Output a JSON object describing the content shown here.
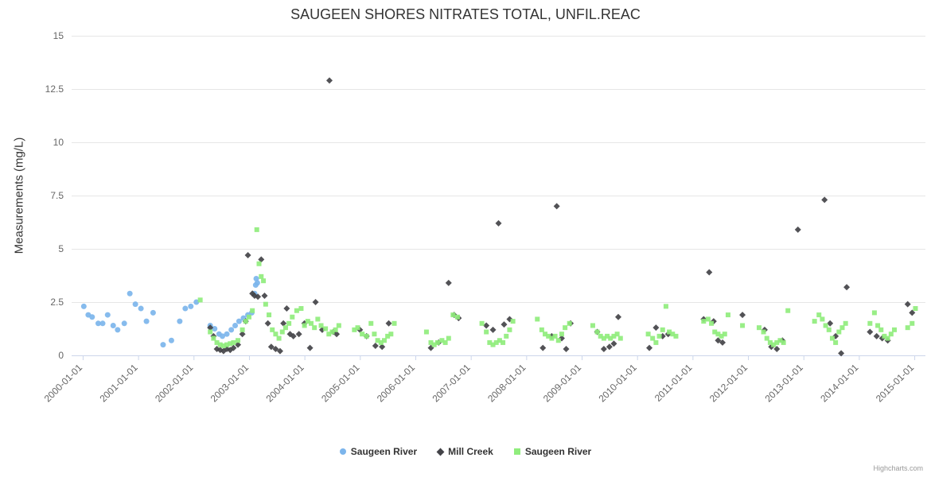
{
  "credits": "Highcharts.com",
  "chart_data": {
    "type": "scatter",
    "title": "SAUGEEN SHORES NITRATES TOTAL, UNFIL.REAC",
    "xlabel": "",
    "ylabel": "Measurements (mg/L)",
    "ylim": [
      0,
      15
    ],
    "xlim": [
      1999.8,
      2015.2
    ],
    "y_ticks": [
      0,
      2.5,
      5,
      7.5,
      10,
      12.5,
      15
    ],
    "x_tick_values": [
      2000,
      2001,
      2002,
      2003,
      2004,
      2005,
      2006,
      2007,
      2008,
      2009,
      2010,
      2011,
      2012,
      2013,
      2014,
      2015
    ],
    "x_tick_labels": [
      "2000-01-01",
      "2001-01-01",
      "2002-01-01",
      "2003-01-01",
      "2004-01-01",
      "2005-01-01",
      "2006-01-01",
      "2007-01-01",
      "2008-01-01",
      "2009-01-01",
      "2010-01-01",
      "2011-01-01",
      "2012-01-01",
      "2013-01-01",
      "2014-01-01",
      "2015-01-01"
    ],
    "grid": true,
    "legend_position": "bottom",
    "grid_color": "#e6e6e6",
    "axis_line_color": "#ccd6eb",
    "tick_label_color": "#666666",
    "series": [
      {
        "name": "Saugeen River",
        "marker": "circle",
        "color": "#7cb5ec",
        "points": [
          [
            2000.02,
            2.3
          ],
          [
            2000.1,
            1.9
          ],
          [
            2000.17,
            1.8
          ],
          [
            2000.28,
            1.5
          ],
          [
            2000.36,
            1.5
          ],
          [
            2000.45,
            1.9
          ],
          [
            2000.55,
            1.4
          ],
          [
            2000.63,
            1.2
          ],
          [
            2000.75,
            1.5
          ],
          [
            2000.85,
            2.9
          ],
          [
            2000.95,
            2.4
          ],
          [
            2001.05,
            2.2
          ],
          [
            2001.15,
            1.6
          ],
          [
            2001.27,
            2.0
          ],
          [
            2001.45,
            0.5
          ],
          [
            2001.6,
            0.7
          ],
          [
            2001.75,
            1.6
          ],
          [
            2001.85,
            2.2
          ],
          [
            2001.95,
            2.3
          ],
          [
            2002.05,
            2.5
          ],
          [
            2002.3,
            1.4
          ],
          [
            2002.38,
            1.25
          ],
          [
            2002.46,
            1.0
          ],
          [
            2002.52,
            0.9
          ],
          [
            2002.6,
            1.0
          ],
          [
            2002.68,
            1.2
          ],
          [
            2002.75,
            1.4
          ],
          [
            2002.82,
            1.6
          ],
          [
            2002.9,
            1.75
          ],
          [
            2002.98,
            1.9
          ],
          [
            2003.05,
            2.0
          ],
          [
            2003.1,
            2.9
          ],
          [
            2003.12,
            3.3
          ],
          [
            2003.13,
            3.6
          ],
          [
            2003.15,
            3.4
          ]
        ]
      },
      {
        "name": "Mill Creek",
        "marker": "diamond",
        "color": "#434348",
        "points": [
          [
            2002.3,
            1.3
          ],
          [
            2002.36,
            0.9
          ],
          [
            2002.42,
            0.3
          ],
          [
            2002.48,
            0.25
          ],
          [
            2002.54,
            0.2
          ],
          [
            2002.6,
            0.3
          ],
          [
            2002.66,
            0.25
          ],
          [
            2002.72,
            0.35
          ],
          [
            2002.8,
            0.5
          ],
          [
            2002.88,
            1.0
          ],
          [
            2002.94,
            1.6
          ],
          [
            2002.98,
            4.7
          ],
          [
            2003.06,
            2.9
          ],
          [
            2003.1,
            2.8
          ],
          [
            2003.16,
            2.75
          ],
          [
            2003.22,
            4.5
          ],
          [
            2003.28,
            2.8
          ],
          [
            2003.34,
            1.5
          ],
          [
            2003.4,
            0.4
          ],
          [
            2003.48,
            0.3
          ],
          [
            2003.56,
            0.2
          ],
          [
            2003.62,
            1.5
          ],
          [
            2003.68,
            2.2
          ],
          [
            2003.74,
            1.0
          ],
          [
            2003.8,
            0.9
          ],
          [
            2003.9,
            1.0
          ],
          [
            2004.0,
            1.5
          ],
          [
            2004.1,
            0.35
          ],
          [
            2004.2,
            2.5
          ],
          [
            2004.32,
            1.2
          ],
          [
            2004.45,
            12.9
          ],
          [
            2004.52,
            1.1
          ],
          [
            2004.58,
            1.0
          ],
          [
            2005.0,
            1.2
          ],
          [
            2005.12,
            0.9
          ],
          [
            2005.28,
            0.45
          ],
          [
            2005.4,
            0.4
          ],
          [
            2005.52,
            1.5
          ],
          [
            2006.28,
            0.35
          ],
          [
            2006.42,
            0.6
          ],
          [
            2006.6,
            3.4
          ],
          [
            2006.7,
            1.9
          ],
          [
            2006.78,
            1.75
          ],
          [
            2007.28,
            1.4
          ],
          [
            2007.4,
            1.2
          ],
          [
            2007.5,
            6.2
          ],
          [
            2007.6,
            1.45
          ],
          [
            2007.7,
            1.7
          ],
          [
            2008.3,
            0.35
          ],
          [
            2008.46,
            0.9
          ],
          [
            2008.55,
            7.0
          ],
          [
            2008.64,
            0.8
          ],
          [
            2008.72,
            0.3
          ],
          [
            2008.8,
            1.5
          ],
          [
            2009.28,
            1.1
          ],
          [
            2009.4,
            0.3
          ],
          [
            2009.5,
            0.4
          ],
          [
            2009.58,
            0.55
          ],
          [
            2009.66,
            1.8
          ],
          [
            2010.22,
            0.35
          ],
          [
            2010.34,
            1.3
          ],
          [
            2010.46,
            0.9
          ],
          [
            2010.56,
            1.0
          ],
          [
            2011.2,
            1.7
          ],
          [
            2011.3,
            3.9
          ],
          [
            2011.38,
            1.6
          ],
          [
            2011.46,
            0.7
          ],
          [
            2011.54,
            0.6
          ],
          [
            2011.9,
            1.9
          ],
          [
            2012.3,
            1.2
          ],
          [
            2012.42,
            0.4
          ],
          [
            2012.52,
            0.3
          ],
          [
            2012.62,
            0.7
          ],
          [
            2012.9,
            5.9
          ],
          [
            2013.38,
            7.3
          ],
          [
            2013.48,
            1.5
          ],
          [
            2013.58,
            0.9
          ],
          [
            2013.68,
            0.1
          ],
          [
            2013.78,
            3.2
          ],
          [
            2014.2,
            1.1
          ],
          [
            2014.32,
            0.9
          ],
          [
            2014.42,
            0.8
          ],
          [
            2014.52,
            0.7
          ],
          [
            2014.88,
            2.4
          ],
          [
            2014.96,
            2.0
          ]
        ]
      },
      {
        "name": "Saugeen River",
        "marker": "square",
        "color": "#90ed7d",
        "points": [
          [
            2002.12,
            2.6
          ],
          [
            2002.3,
            1.1
          ],
          [
            2002.36,
            0.8
          ],
          [
            2002.42,
            0.6
          ],
          [
            2002.48,
            0.5
          ],
          [
            2002.54,
            0.45
          ],
          [
            2002.6,
            0.5
          ],
          [
            2002.66,
            0.55
          ],
          [
            2002.72,
            0.6
          ],
          [
            2002.8,
            0.7
          ],
          [
            2002.88,
            1.2
          ],
          [
            2002.94,
            1.6
          ],
          [
            2003.0,
            1.8
          ],
          [
            2003.06,
            2.1
          ],
          [
            2003.14,
            5.9
          ],
          [
            2003.18,
            4.3
          ],
          [
            2003.22,
            3.7
          ],
          [
            2003.26,
            3.5
          ],
          [
            2003.3,
            2.4
          ],
          [
            2003.36,
            1.9
          ],
          [
            2003.42,
            1.2
          ],
          [
            2003.48,
            1.0
          ],
          [
            2003.54,
            0.8
          ],
          [
            2003.6,
            1.1
          ],
          [
            2003.66,
            1.3
          ],
          [
            2003.72,
            1.5
          ],
          [
            2003.78,
            1.8
          ],
          [
            2003.86,
            2.1
          ],
          [
            2003.94,
            2.2
          ],
          [
            2004.0,
            1.4
          ],
          [
            2004.06,
            1.6
          ],
          [
            2004.12,
            1.5
          ],
          [
            2004.18,
            1.3
          ],
          [
            2004.24,
            1.7
          ],
          [
            2004.3,
            1.4
          ],
          [
            2004.38,
            1.25
          ],
          [
            2004.44,
            1.0
          ],
          [
            2004.5,
            1.1
          ],
          [
            2004.56,
            1.2
          ],
          [
            2004.62,
            1.4
          ],
          [
            2004.9,
            1.2
          ],
          [
            2004.96,
            1.3
          ],
          [
            2005.04,
            1.0
          ],
          [
            2005.12,
            0.9
          ],
          [
            2005.2,
            1.5
          ],
          [
            2005.26,
            1.0
          ],
          [
            2005.32,
            0.7
          ],
          [
            2005.38,
            0.6
          ],
          [
            2005.44,
            0.7
          ],
          [
            2005.5,
            0.9
          ],
          [
            2005.56,
            1.0
          ],
          [
            2005.62,
            1.5
          ],
          [
            2006.2,
            1.1
          ],
          [
            2006.28,
            0.6
          ],
          [
            2006.34,
            0.5
          ],
          [
            2006.4,
            0.6
          ],
          [
            2006.48,
            0.7
          ],
          [
            2006.54,
            0.6
          ],
          [
            2006.6,
            0.8
          ],
          [
            2006.68,
            1.9
          ],
          [
            2006.76,
            1.8
          ],
          [
            2007.2,
            1.5
          ],
          [
            2007.28,
            1.1
          ],
          [
            2007.34,
            0.6
          ],
          [
            2007.4,
            0.5
          ],
          [
            2007.46,
            0.6
          ],
          [
            2007.52,
            0.7
          ],
          [
            2007.58,
            0.6
          ],
          [
            2007.64,
            0.9
          ],
          [
            2007.7,
            1.2
          ],
          [
            2007.76,
            1.6
          ],
          [
            2008.2,
            1.7
          ],
          [
            2008.28,
            1.2
          ],
          [
            2008.34,
            1.0
          ],
          [
            2008.4,
            0.9
          ],
          [
            2008.46,
            0.8
          ],
          [
            2008.52,
            0.9
          ],
          [
            2008.58,
            0.7
          ],
          [
            2008.64,
            1.0
          ],
          [
            2008.7,
            1.3
          ],
          [
            2008.78,
            1.5
          ],
          [
            2009.2,
            1.4
          ],
          [
            2009.28,
            1.1
          ],
          [
            2009.34,
            0.9
          ],
          [
            2009.4,
            0.8
          ],
          [
            2009.46,
            0.9
          ],
          [
            2009.52,
            0.8
          ],
          [
            2009.58,
            0.9
          ],
          [
            2009.64,
            1.0
          ],
          [
            2009.7,
            0.8
          ],
          [
            2010.2,
            1.0
          ],
          [
            2010.28,
            0.8
          ],
          [
            2010.34,
            0.6
          ],
          [
            2010.4,
            0.9
          ],
          [
            2010.46,
            1.2
          ],
          [
            2010.52,
            2.3
          ],
          [
            2010.58,
            1.1
          ],
          [
            2010.64,
            1.0
          ],
          [
            2010.7,
            0.9
          ],
          [
            2011.2,
            1.6
          ],
          [
            2011.28,
            1.7
          ],
          [
            2011.34,
            1.5
          ],
          [
            2011.4,
            1.1
          ],
          [
            2011.46,
            1.0
          ],
          [
            2011.52,
            0.9
          ],
          [
            2011.58,
            1.0
          ],
          [
            2011.64,
            1.9
          ],
          [
            2011.9,
            1.4
          ],
          [
            2012.2,
            1.3
          ],
          [
            2012.28,
            1.1
          ],
          [
            2012.34,
            0.8
          ],
          [
            2012.4,
            0.6
          ],
          [
            2012.46,
            0.5
          ],
          [
            2012.52,
            0.6
          ],
          [
            2012.58,
            0.7
          ],
          [
            2012.64,
            0.6
          ],
          [
            2012.72,
            2.1
          ],
          [
            2013.2,
            1.6
          ],
          [
            2013.28,
            1.9
          ],
          [
            2013.34,
            1.7
          ],
          [
            2013.4,
            1.4
          ],
          [
            2013.46,
            1.2
          ],
          [
            2013.52,
            0.8
          ],
          [
            2013.58,
            0.6
          ],
          [
            2013.64,
            1.1
          ],
          [
            2013.7,
            1.3
          ],
          [
            2013.76,
            1.5
          ],
          [
            2014.2,
            1.5
          ],
          [
            2014.28,
            2.0
          ],
          [
            2014.34,
            1.4
          ],
          [
            2014.4,
            1.2
          ],
          [
            2014.46,
            0.9
          ],
          [
            2014.52,
            0.8
          ],
          [
            2014.58,
            1.0
          ],
          [
            2014.64,
            1.2
          ],
          [
            2014.88,
            1.3
          ],
          [
            2014.96,
            1.5
          ],
          [
            2015.02,
            2.2
          ]
        ]
      }
    ]
  }
}
